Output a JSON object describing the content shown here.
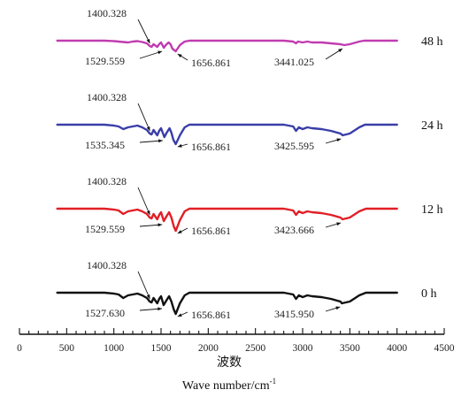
{
  "chart_data": {
    "type": "line",
    "xlabel_cn": "波数",
    "xlabel": "Wave number/cm",
    "xlabel_sup": "-1",
    "xlim": [
      0,
      4500
    ],
    "x_ticks": [
      0,
      500,
      1000,
      1500,
      2000,
      2500,
      3000,
      3500,
      4000,
      4500
    ],
    "y_ticks_shown": false,
    "series": [
      {
        "name": "48 h",
        "color": "#c03cb0",
        "peaks": [
          {
            "x": 1400.328,
            "label": "1400.328"
          },
          {
            "x": 1529.559,
            "label": "1529.559"
          },
          {
            "x": 1656.861,
            "label": "1656.861"
          },
          {
            "x": 3441.025,
            "label": "3441.025"
          }
        ],
        "points": [
          [
            400,
            0
          ],
          [
            900,
            0
          ],
          [
            1000,
            -0.5
          ],
          [
            1050,
            -1
          ],
          [
            1100,
            -1.5
          ],
          [
            1150,
            -2
          ],
          [
            1200,
            -1
          ],
          [
            1250,
            -0.5
          ],
          [
            1300,
            -1.5
          ],
          [
            1350,
            -3
          ],
          [
            1380,
            -6
          ],
          [
            1400,
            -7
          ],
          [
            1420,
            -4
          ],
          [
            1460,
            -7
          ],
          [
            1480,
            -4
          ],
          [
            1500,
            -2
          ],
          [
            1529,
            -8
          ],
          [
            1550,
            -5
          ],
          [
            1580,
            -2
          ],
          [
            1600,
            -4
          ],
          [
            1620,
            -9
          ],
          [
            1656,
            -12
          ],
          [
            1700,
            -5
          ],
          [
            1750,
            -1
          ],
          [
            1800,
            0
          ],
          [
            2400,
            0
          ],
          [
            2800,
            0
          ],
          [
            2900,
            -1
          ],
          [
            2930,
            -3
          ],
          [
            2950,
            -1
          ],
          [
            3000,
            -2
          ],
          [
            3050,
            -1
          ],
          [
            3100,
            -2
          ],
          [
            3200,
            -2
          ],
          [
            3300,
            -3
          ],
          [
            3400,
            -4
          ],
          [
            3441,
            -5
          ],
          [
            3500,
            -4
          ],
          [
            3600,
            -1
          ],
          [
            3650,
            0
          ],
          [
            4000,
            0
          ]
        ]
      },
      {
        "name": "24 h",
        "color": "#3a3ea8",
        "peaks": [
          {
            "x": 1400.328,
            "label": "1400.328"
          },
          {
            "x": 1535.345,
            "label": "1535.345"
          },
          {
            "x": 1656.861,
            "label": "1656.861"
          },
          {
            "x": 3425.595,
            "label": "3425.595"
          }
        ],
        "points": [
          [
            400,
            0
          ],
          [
            900,
            0
          ],
          [
            1000,
            -1
          ],
          [
            1050,
            -2
          ],
          [
            1100,
            -5
          ],
          [
            1150,
            -3
          ],
          [
            1200,
            -2
          ],
          [
            1250,
            -1
          ],
          [
            1300,
            -3
          ],
          [
            1350,
            -6
          ],
          [
            1380,
            -10
          ],
          [
            1400,
            -11
          ],
          [
            1420,
            -6
          ],
          [
            1460,
            -12
          ],
          [
            1480,
            -7
          ],
          [
            1500,
            -4
          ],
          [
            1535,
            -14
          ],
          [
            1560,
            -9
          ],
          [
            1590,
            -4
          ],
          [
            1610,
            -9
          ],
          [
            1630,
            -17
          ],
          [
            1656,
            -22
          ],
          [
            1700,
            -12
          ],
          [
            1750,
            -3
          ],
          [
            1800,
            0
          ],
          [
            2400,
            0
          ],
          [
            2800,
            0
          ],
          [
            2900,
            -2
          ],
          [
            2930,
            -7
          ],
          [
            2960,
            -3
          ],
          [
            3000,
            -5
          ],
          [
            3050,
            -3
          ],
          [
            3100,
            -4
          ],
          [
            3200,
            -5
          ],
          [
            3300,
            -7
          ],
          [
            3400,
            -10
          ],
          [
            3425,
            -12
          ],
          [
            3500,
            -10
          ],
          [
            3600,
            -3
          ],
          [
            3660,
            0
          ],
          [
            4000,
            0
          ]
        ]
      },
      {
        "name": "12 h",
        "color": "#e21f26",
        "peaks": [
          {
            "x": 1400.328,
            "label": "1400.328"
          },
          {
            "x": 1529.559,
            "label": "1529.559"
          },
          {
            "x": 1656.861,
            "label": "1656.861"
          },
          {
            "x": 3423.666,
            "label": "3423.666"
          }
        ],
        "points": [
          [
            400,
            0
          ],
          [
            900,
            0
          ],
          [
            1000,
            -1
          ],
          [
            1050,
            -2
          ],
          [
            1100,
            -6
          ],
          [
            1150,
            -3
          ],
          [
            1200,
            -2
          ],
          [
            1250,
            -1
          ],
          [
            1300,
            -3
          ],
          [
            1350,
            -6
          ],
          [
            1380,
            -10
          ],
          [
            1400,
            -11
          ],
          [
            1420,
            -6
          ],
          [
            1460,
            -12
          ],
          [
            1480,
            -7
          ],
          [
            1500,
            -4
          ],
          [
            1529,
            -14
          ],
          [
            1555,
            -9
          ],
          [
            1585,
            -4
          ],
          [
            1610,
            -10
          ],
          [
            1635,
            -20
          ],
          [
            1656,
            -25
          ],
          [
            1700,
            -13
          ],
          [
            1750,
            -3
          ],
          [
            1800,
            0
          ],
          [
            2400,
            0
          ],
          [
            2800,
            0
          ],
          [
            2900,
            -2
          ],
          [
            2930,
            -7
          ],
          [
            2960,
            -3
          ],
          [
            3000,
            -5
          ],
          [
            3050,
            -3
          ],
          [
            3100,
            -4
          ],
          [
            3200,
            -5
          ],
          [
            3300,
            -7
          ],
          [
            3400,
            -10
          ],
          [
            3423,
            -12
          ],
          [
            3500,
            -10
          ],
          [
            3600,
            -3
          ],
          [
            3670,
            0
          ],
          [
            4000,
            0
          ]
        ]
      },
      {
        "name": "0 h",
        "color": "#111111",
        "peaks": [
          {
            "x": 1400.328,
            "label": "1400.328"
          },
          {
            "x": 1527.63,
            "label": "1527.630"
          },
          {
            "x": 1656.861,
            "label": "1656.861"
          },
          {
            "x": 3415.95,
            "label": "3415.950"
          }
        ],
        "points": [
          [
            400,
            0
          ],
          [
            900,
            0
          ],
          [
            1000,
            -1
          ],
          [
            1050,
            -2
          ],
          [
            1100,
            -6
          ],
          [
            1150,
            -3
          ],
          [
            1200,
            -2
          ],
          [
            1250,
            -1
          ],
          [
            1300,
            -3
          ],
          [
            1350,
            -6
          ],
          [
            1380,
            -10
          ],
          [
            1400,
            -11
          ],
          [
            1420,
            -6
          ],
          [
            1460,
            -12
          ],
          [
            1480,
            -7
          ],
          [
            1500,
            -4
          ],
          [
            1527,
            -14
          ],
          [
            1555,
            -9
          ],
          [
            1585,
            -4
          ],
          [
            1610,
            -10
          ],
          [
            1635,
            -19
          ],
          [
            1656,
            -24
          ],
          [
            1700,
            -12
          ],
          [
            1750,
            -3
          ],
          [
            1800,
            0
          ],
          [
            2400,
            0
          ],
          [
            2800,
            0
          ],
          [
            2900,
            -2
          ],
          [
            2930,
            -7
          ],
          [
            2960,
            -3
          ],
          [
            3000,
            -5
          ],
          [
            3050,
            -3
          ],
          [
            3100,
            -4
          ],
          [
            3200,
            -5
          ],
          [
            3300,
            -7
          ],
          [
            3400,
            -10
          ],
          [
            3415,
            -12
          ],
          [
            3500,
            -10
          ],
          [
            3600,
            -3
          ],
          [
            3670,
            0
          ],
          [
            4000,
            0
          ]
        ]
      }
    ]
  }
}
